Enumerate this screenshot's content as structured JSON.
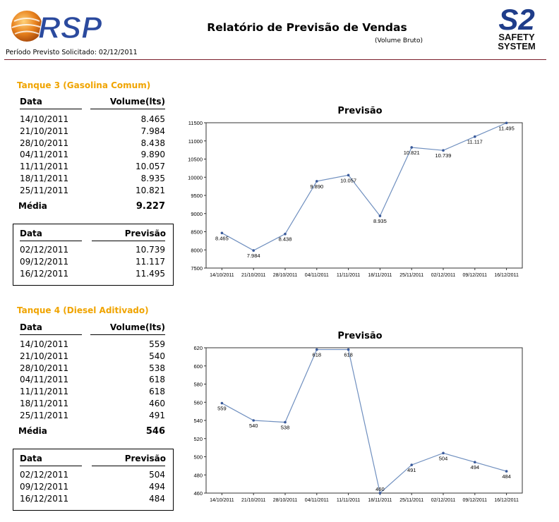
{
  "header": {
    "logo_text": "RSP",
    "brand_logo_top": "S2",
    "brand_logo_bottom1": "SAFETY",
    "brand_logo_bottom2": "SYSTEM",
    "title": "Relatório de Previsão de Vendas",
    "subtitle": "(Volume Bruto)",
    "periodo": "Período Previsto Solicitado: 02/12/2011"
  },
  "tanks": [
    {
      "title": "Tanque 3 (Gasolina Comum)",
      "hist_headers": {
        "data": "Data",
        "volume": "Volume(lts)"
      },
      "history": [
        {
          "data": "14/10/2011",
          "volume": "8.465"
        },
        {
          "data": "21/10/2011",
          "volume": "7.984"
        },
        {
          "data": "28/10/2011",
          "volume": "8.438"
        },
        {
          "data": "04/11/2011",
          "volume": "9.890"
        },
        {
          "data": "11/11/2011",
          "volume": "10.057"
        },
        {
          "data": "18/11/2011",
          "volume": "8.935"
        },
        {
          "data": "25/11/2011",
          "volume": "10.821"
        }
      ],
      "media_label": "Média",
      "media_value": "9.227",
      "fc_headers": {
        "data": "Data",
        "previsao": "Previsão"
      },
      "forecast": [
        {
          "data": "02/12/2011",
          "previsao": "10.739"
        },
        {
          "data": "09/12/2011",
          "previsao": "11.117"
        },
        {
          "data": "16/12/2011",
          "previsao": "11.495"
        }
      ]
    },
    {
      "title": "Tanque 4 (Diesel Aditivado)",
      "hist_headers": {
        "data": "Data",
        "volume": "Volume(lts)"
      },
      "history": [
        {
          "data": "14/10/2011",
          "volume": "559"
        },
        {
          "data": "21/10/2011",
          "volume": "540"
        },
        {
          "data": "28/10/2011",
          "volume": "538"
        },
        {
          "data": "04/11/2011",
          "volume": "618"
        },
        {
          "data": "11/11/2011",
          "volume": "618"
        },
        {
          "data": "18/11/2011",
          "volume": "460"
        },
        {
          "data": "25/11/2011",
          "volume": "491"
        }
      ],
      "media_label": "Média",
      "media_value": "546",
      "fc_headers": {
        "data": "Data",
        "previsao": "Previsão"
      },
      "forecast": [
        {
          "data": "02/12/2011",
          "previsao": "504"
        },
        {
          "data": "09/12/2011",
          "previsao": "494"
        },
        {
          "data": "16/12/2011",
          "previsao": "484"
        }
      ]
    }
  ],
  "chart_data": [
    {
      "type": "line",
      "title": "Previsão",
      "x": [
        "14/10/2011",
        "21/10/2011",
        "28/10/2011",
        "04/11/2011",
        "11/11/2011",
        "18/11/2011",
        "25/11/2011",
        "02/12/2011",
        "09/12/2011",
        "16/12/2011"
      ],
      "series": [
        {
          "values": [
            8465,
            7984,
            8438,
            9890,
            10057,
            8935,
            10821,
            10739,
            11117,
            11495
          ]
        }
      ],
      "data_labels": [
        "8.465",
        "7.984",
        "8.438",
        "9.890",
        "10.057",
        "8.935",
        "10.821",
        "10.739",
        "11.117",
        "11.495"
      ],
      "y_ticks": [
        7500,
        8000,
        8500,
        9000,
        9500,
        10000,
        10500,
        11000,
        11500
      ],
      "ylim": [
        7500,
        11500
      ],
      "grid": false,
      "line_color": "#6f8fbf"
    },
    {
      "type": "line",
      "title": "Previsão",
      "x": [
        "14/10/2011",
        "21/10/2011",
        "28/10/2011",
        "04/11/2011",
        "11/11/2011",
        "18/11/2011",
        "25/11/2011",
        "02/12/2011",
        "09/12/2011",
        "16/12/2011"
      ],
      "series": [
        {
          "values": [
            559,
            540,
            538,
            618,
            618,
            460,
            491,
            504,
            494,
            484
          ]
        }
      ],
      "data_labels": [
        "559",
        "540",
        "538",
        "618",
        "618",
        "460",
        "491",
        "504",
        "494",
        "484"
      ],
      "y_ticks": [
        460,
        480,
        500,
        520,
        540,
        560,
        580,
        600,
        620
      ],
      "ylim": [
        460,
        620
      ],
      "grid": false,
      "line_color": "#6f8fbf"
    }
  ],
  "colors": {
    "tank_title": "#f0a400",
    "header_rule": "#7a1f2b",
    "s2_blue": "#1f3d8a",
    "rsp_blue": "#2b4a9e",
    "rsp_orange": "#e8821e"
  }
}
